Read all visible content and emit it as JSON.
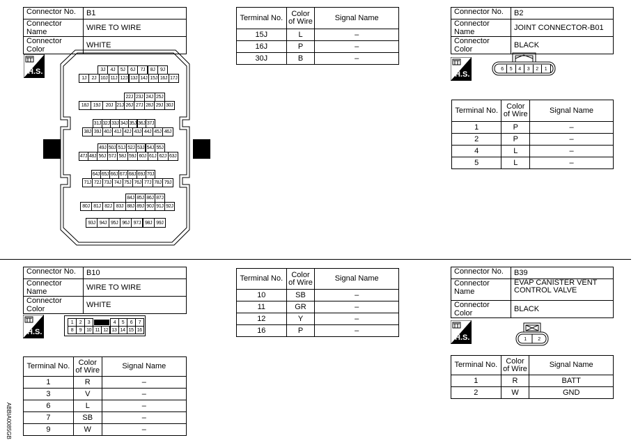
{
  "b1": {
    "info": [
      [
        "Connector No.",
        "B1"
      ],
      [
        "Connector Name",
        "WIRE TO WIRE"
      ],
      [
        "Connector Color",
        "WHITE"
      ]
    ],
    "terminal_headers": [
      "Terminal No.",
      "Color of Wire",
      "Signal Name"
    ],
    "terminals": [
      [
        "15J",
        "L",
        "–"
      ],
      [
        "16J",
        "P",
        "–"
      ],
      [
        "30J",
        "B",
        "–"
      ]
    ],
    "connector_rows": [
      [
        "3J",
        "4J",
        "5J",
        "6J",
        "7J",
        "8J",
        "9J"
      ],
      [
        "1J",
        "2J",
        "10J",
        "11J",
        "12J",
        "13J",
        "14J",
        "15J",
        "16J",
        "17J"
      ],
      [
        "22J",
        "23J",
        "24J",
        "25J"
      ],
      [
        "18J",
        "19J",
        "20J",
        "21J",
        "26J",
        "27J",
        "28J",
        "29J",
        "30J"
      ],
      [
        "31J",
        "32J",
        "33J",
        "34J",
        "35J",
        "36J",
        "37J"
      ],
      [
        "38J",
        "39J",
        "40J",
        "41J",
        "42J",
        "43J",
        "44J",
        "45J",
        "46J"
      ],
      [
        "49J",
        "50J",
        "51J",
        "52J",
        "53J",
        "54J",
        "55J"
      ],
      [
        "47J",
        "48J",
        "56J",
        "57J",
        "58J",
        "59J",
        "60J",
        "61J",
        "62J",
        "63J"
      ],
      [
        "64J",
        "65J",
        "66J",
        "67J",
        "68J",
        "69J",
        "70J"
      ],
      [
        "71J",
        "72J",
        "73J",
        "74J",
        "75J",
        "76J",
        "77J",
        "78J",
        "79J"
      ],
      [
        "84J",
        "85J",
        "86J",
        "87J"
      ],
      [
        "80J",
        "81J",
        "82J",
        "83J",
        "88J",
        "89J",
        "90J",
        "91J",
        "92J"
      ],
      [
        "93J",
        "94J",
        "95J",
        "96J",
        "97J",
        "98J",
        "99J"
      ]
    ]
  },
  "b2": {
    "info": [
      [
        "Connector No.",
        "B2"
      ],
      [
        "Connector Name",
        "JOINT CONNECTOR-B01"
      ],
      [
        "Connector Color",
        "BLACK"
      ]
    ],
    "terminal_headers": [
      "Terminal No.",
      "Color of Wire",
      "Signal Name"
    ],
    "terminals": [
      [
        "1",
        "P",
        "–"
      ],
      [
        "2",
        "P",
        "–"
      ],
      [
        "4",
        "L",
        "–"
      ],
      [
        "5",
        "L",
        "–"
      ]
    ],
    "connector_pins": [
      "6",
      "5",
      "4",
      "3",
      "2",
      "1"
    ]
  },
  "b10": {
    "info": [
      [
        "Connector No.",
        "B10"
      ],
      [
        "Connector Name",
        "WIRE TO WIRE"
      ],
      [
        "Connector Color",
        "WHITE"
      ]
    ],
    "terminal_headers": [
      "Terminal No.",
      "Color of Wire",
      "Signal Name"
    ],
    "terminals": [
      [
        "1",
        "R",
        "–"
      ],
      [
        "3",
        "V",
        "–"
      ],
      [
        "6",
        "L",
        "–"
      ],
      [
        "7",
        "SB",
        "–"
      ],
      [
        "9",
        "W",
        "–"
      ]
    ],
    "terminals_2": [
      [
        "10",
        "SB",
        "–"
      ],
      [
        "11",
        "GR",
        "–"
      ],
      [
        "12",
        "Y",
        "–"
      ],
      [
        "16",
        "P",
        "–"
      ]
    ],
    "connector_top": [
      "1",
      "2",
      "3",
      "4",
      "5",
      "6",
      "7"
    ],
    "connector_bottom": [
      "8",
      "9",
      "10",
      "11",
      "12",
      "13",
      "14",
      "15",
      "16"
    ]
  },
  "b39": {
    "info": [
      [
        "Connector No.",
        "B39"
      ],
      [
        "Connector Name",
        "EVAP CANISTER VENT CONTROL VALVE"
      ],
      [
        "Connector Color",
        "BLACK"
      ]
    ],
    "terminal_headers": [
      "Terminal No.",
      "Color of Wire",
      "Signal Name"
    ],
    "terminals": [
      [
        "1",
        "R",
        "BATT"
      ],
      [
        "2",
        "W",
        "GND"
      ]
    ],
    "connector_pins": [
      "1",
      "2"
    ]
  },
  "hs_label": "H.S.",
  "figure_code": "ABBIA0085GB"
}
